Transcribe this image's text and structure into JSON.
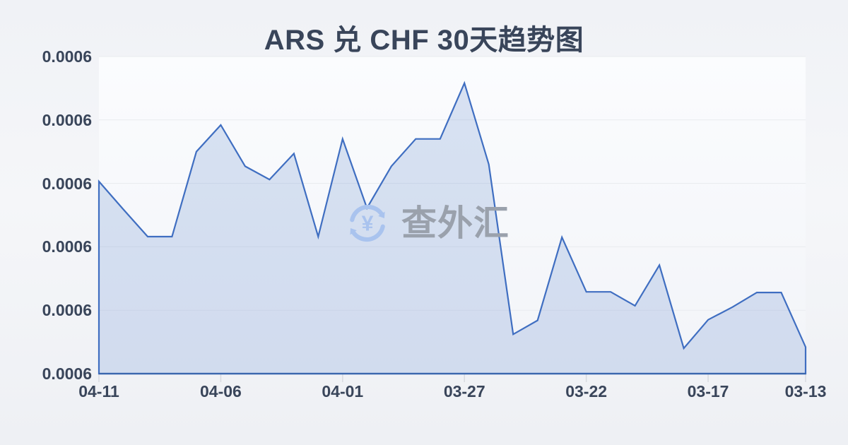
{
  "chart_data": {
    "type": "area",
    "title": "ARS 兑 CHF 30天趋势图",
    "series_name": "ARS/CHF",
    "x": [
      "04-11",
      "04-10",
      "04-09",
      "04-08",
      "04-07",
      "04-06",
      "04-05",
      "04-04",
      "04-03",
      "04-02",
      "04-01",
      "03-31",
      "03-30",
      "03-29",
      "03-28",
      "03-27",
      "03-26",
      "03-25",
      "03-24",
      "03-23",
      "03-22",
      "03-21",
      "03-20",
      "03-19",
      "03-18",
      "03-17",
      "03-16",
      "03-15",
      "03-14",
      "03-13"
    ],
    "values": [
      0.0006003,
      0.0005959,
      0.0005916,
      0.0005916,
      0.000605,
      0.0006092,
      0.0006027,
      0.0006006,
      0.0006047,
      0.0005916,
      0.000607,
      0.0005961,
      0.0006027,
      0.000607,
      0.000607,
      0.0006158,
      0.000603,
      0.0005762,
      0.0005784,
      0.0005915,
      0.0005829,
      0.0005829,
      0.0005807,
      0.0005871,
      0.000574,
      0.0005785,
      0.0005805,
      0.0005828,
      0.0005828,
      0.0005742
    ],
    "x_tick_indices": [
      0,
      5,
      10,
      15,
      20,
      25,
      29
    ],
    "x_tick_labels": [
      "04-11",
      "04-06",
      "04-01",
      "03-27",
      "03-22",
      "03-17",
      "03-13"
    ],
    "y_tick_labels": [
      "0.0006",
      "0.0006",
      "0.0006",
      "0.0006",
      "0.0006",
      "0.0006"
    ],
    "ylim": [
      0.00057,
      0.00062
    ],
    "grid": true,
    "legend": false,
    "x_direction": "newest-on-left"
  },
  "watermark": {
    "text": "查外汇",
    "icon": "currency-refresh-icon"
  },
  "colors": {
    "line": "#3f6ec1",
    "fill": "rgba(63,110,193,0.18)",
    "axis_line": "#3a67ae",
    "gridline": "#e9ebef",
    "tick": "#d8dbe0",
    "text": "#39455a",
    "plot_bg_top": "#fbfcfe",
    "plot_bg_bottom": "#f2f4f8",
    "watermark_icon": "#a9c3ee",
    "watermark_text": "#9aa1ac",
    "background": "#f0f2f6"
  }
}
